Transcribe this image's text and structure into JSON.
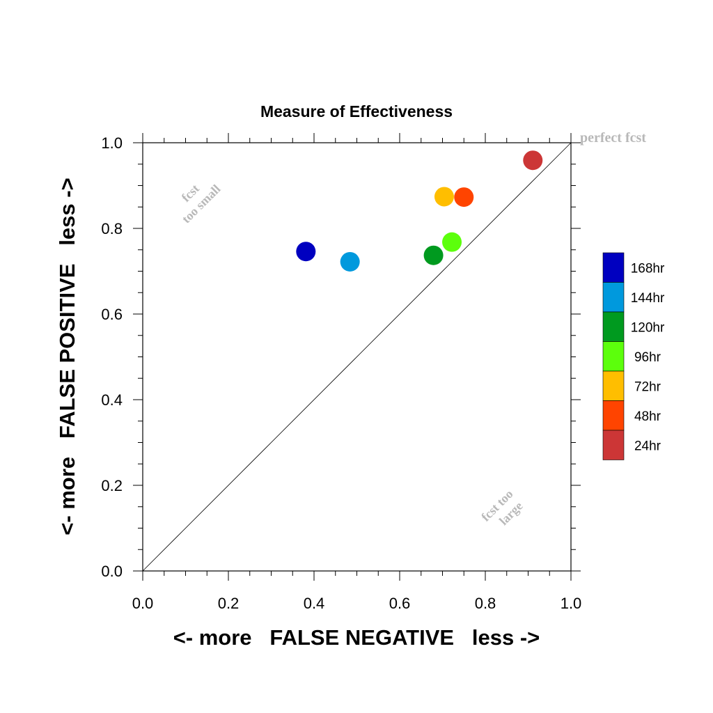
{
  "chart_data": {
    "type": "scatter",
    "title": "Measure of Effectiveness",
    "xlabel": "<- more   FALSE NEGATIVE   less ->",
    "ylabel": "<- more   FALSE POSITIVE   less ->",
    "xlim": [
      0.0,
      1.0
    ],
    "ylim": [
      0.0,
      1.0
    ],
    "x_ticks": [
      "0.0",
      "0.2",
      "0.4",
      "0.6",
      "0.8",
      "1.0"
    ],
    "y_ticks": [
      "0.0",
      "0.2",
      "0.4",
      "0.6",
      "0.8",
      "1.0"
    ],
    "grid": false,
    "diagonal_line": true,
    "legend_position": "right",
    "annotations": {
      "top_right": "perfect fcst",
      "upper_left_line1": "fcst",
      "upper_left_line2": "too small",
      "lower_right_line1": "fcst too",
      "lower_right_line2": "large"
    },
    "series": [
      {
        "name": "168hr",
        "color": "#0000c0",
        "x": 0.381,
        "y": 0.746
      },
      {
        "name": "144hr",
        "color": "#0099dd",
        "x": 0.484,
        "y": 0.722
      },
      {
        "name": "120hr",
        "color": "#009a1f",
        "x": 0.679,
        "y": 0.737
      },
      {
        "name": "96hr",
        "color": "#5cff0c",
        "x": 0.722,
        "y": 0.768
      },
      {
        "name": "72hr",
        "color": "#ffbe00",
        "x": 0.704,
        "y": 0.874
      },
      {
        "name": "48hr",
        "color": "#ff4400",
        "x": 0.75,
        "y": 0.873
      },
      {
        "name": "24hr",
        "color": "#cc3636",
        "x": 0.911,
        "y": 0.959
      }
    ]
  }
}
